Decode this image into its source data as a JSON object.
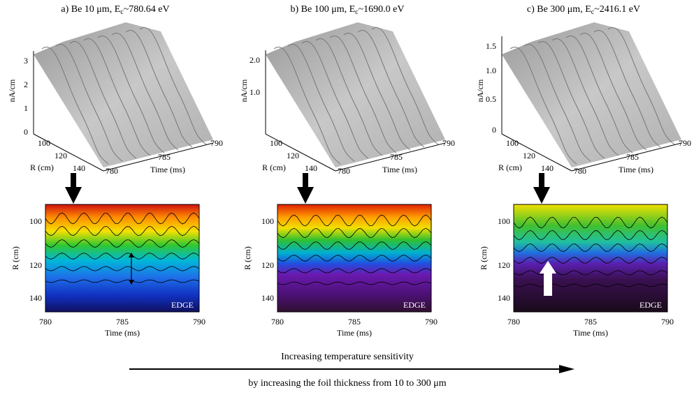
{
  "panels": [
    {
      "title": {
        "text": "a) Be 10 μm,  E",
        "subscript": "c",
        "suffix": "~780.64 eV"
      },
      "surface": {
        "z_label": "nA/cm",
        "z_ticks": [
          "3",
          "2",
          "1",
          "0"
        ],
        "r_label": "R (cm)",
        "r_ticks": [
          "100",
          "120",
          "140"
        ],
        "t_label": "Time (ms)",
        "t_ticks": [
          "780",
          "785",
          "790"
        ]
      },
      "contour": {
        "y_label": "R (cm)",
        "y_ticks": [
          "100",
          "120",
          "140"
        ],
        "x_label": "Time (ms)",
        "x_ticks": [
          "780",
          "785",
          "790"
        ],
        "annotation": "EDGE"
      }
    },
    {
      "title": {
        "text": "b) Be 100 μm, E",
        "subscript": "c",
        "suffix": "~1690.0 eV"
      },
      "surface": {
        "z_label": "nA/cm",
        "z_ticks": [
          "2.0",
          "1.0"
        ],
        "r_label": "R (cm)",
        "r_ticks": [
          "100",
          "120",
          "140"
        ],
        "t_label": "Time (ms)",
        "t_ticks": [
          "780",
          "785",
          "790"
        ]
      },
      "contour": {
        "y_label": "R (cm)",
        "y_ticks": [
          "100",
          "120",
          "140"
        ],
        "x_label": "Time (ms)",
        "x_ticks": [
          "780",
          "785",
          "790"
        ],
        "annotation": "EDGE"
      }
    },
    {
      "title": {
        "text": "c) Be 300 μm, E",
        "subscript": "c",
        "suffix": "~2416.1 eV"
      },
      "surface": {
        "z_label": "nA/cm",
        "z_ticks": [
          "1.5",
          "1.0",
          "0.5",
          "0"
        ],
        "r_label": "R (cm)",
        "r_ticks": [
          "100",
          "120",
          "140"
        ],
        "t_label": "Time (ms)",
        "t_ticks": [
          "780",
          "785",
          "790"
        ]
      },
      "contour": {
        "y_label": "R (cm)",
        "y_ticks": [
          "100",
          "120",
          "140"
        ],
        "x_label": "Time (ms)",
        "x_ticks": [
          "780",
          "785",
          "790"
        ],
        "annotation": "EDGE"
      }
    }
  ],
  "caption": {
    "line1": "Increasing temperature sensitivity",
    "line2": "by increasing the foil thickness from 10 to 300 μm"
  }
}
